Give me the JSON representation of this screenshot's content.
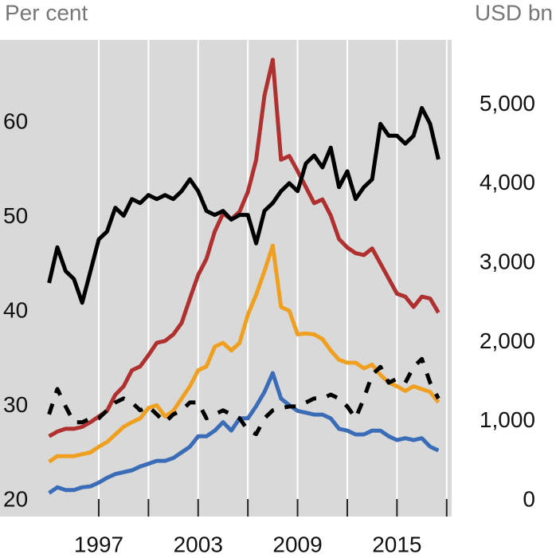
{
  "chart_data": {
    "type": "line",
    "y_label": "Per cent",
    "y2_label": "USD bn",
    "x": [
      1994.0,
      1994.5,
      1995.0,
      1995.5,
      1996.0,
      1996.5,
      1997.0,
      1997.5,
      1998.0,
      1998.5,
      1999.0,
      1999.5,
      2000.0,
      2000.5,
      2001.0,
      2001.5,
      2002.0,
      2002.5,
      2003.0,
      2003.5,
      2004.0,
      2004.5,
      2005.0,
      2005.5,
      2006.0,
      2006.5,
      2007.0,
      2007.5,
      2008.0,
      2008.5,
      2009.0,
      2009.5,
      2010.0,
      2010.5,
      2011.0,
      2011.5,
      2012.0,
      2012.5,
      2013.0,
      2013.5,
      2014.0,
      2014.5,
      2015.0,
      2015.5,
      2016.0,
      2016.5,
      2017.0,
      2017.5
    ],
    "series": [
      {
        "color": "#b03030",
        "values": [
          26.8,
          27.3,
          27.6,
          27.6,
          27.8,
          28.3,
          28.9,
          29.5,
          31.2,
          32.1,
          33.8,
          34.2,
          35.4,
          36.7,
          36.9,
          37.6,
          38.8,
          41.4,
          43.9,
          45.6,
          48.5,
          50.4,
          49.8,
          50.6,
          52.7,
          56.1,
          62.9,
          66.7,
          56.1,
          56.5,
          54.9,
          53.2,
          51.5,
          51.9,
          50.2,
          47.7,
          46.8,
          46.2,
          46.0,
          46.7,
          45.1,
          43.5,
          41.9,
          41.6,
          40.5,
          41.6,
          41.4,
          39.9
        ]
      },
      {
        "color": "#f0a020",
        "values": [
          24.1,
          24.7,
          24.7,
          24.7,
          24.9,
          25.1,
          25.7,
          26.2,
          27.0,
          27.8,
          28.3,
          28.7,
          29.8,
          30.1,
          28.9,
          29.5,
          30.8,
          32.1,
          33.8,
          34.2,
          36.3,
          36.7,
          35.9,
          36.7,
          39.7,
          41.8,
          44.3,
          47.0,
          40.5,
          40.1,
          37.6,
          37.7,
          37.6,
          37.1,
          35.9,
          34.9,
          34.6,
          34.6,
          34.0,
          34.4,
          33.3,
          32.5,
          32.1,
          31.6,
          32.1,
          31.8,
          31.5,
          30.4
        ]
      },
      {
        "color": "#3a6cb8",
        "values": [
          20.8,
          21.4,
          21.1,
          21.1,
          21.4,
          21.5,
          21.9,
          22.4,
          22.8,
          23.0,
          23.2,
          23.6,
          23.9,
          24.2,
          24.2,
          24.5,
          25.1,
          25.7,
          26.8,
          26.8,
          27.4,
          28.3,
          27.4,
          28.7,
          28.7,
          30.0,
          31.5,
          33.5,
          30.8,
          30.1,
          29.5,
          29.3,
          29.1,
          29.1,
          28.7,
          27.6,
          27.4,
          27.0,
          27.0,
          27.4,
          27.4,
          26.8,
          26.4,
          26.6,
          26.4,
          26.6,
          25.7,
          25.3
        ]
      },
      {
        "color": "#000000",
        "axis": "y2",
        "values": [
          2750,
          3200,
          2900,
          2800,
          2500,
          2900,
          3300,
          3400,
          3700,
          3600,
          3810,
          3760,
          3860,
          3810,
          3860,
          3810,
          3910,
          4060,
          3910,
          3660,
          3610,
          3660,
          3550,
          3610,
          3610,
          3250,
          3660,
          3760,
          3910,
          4010,
          3910,
          4260,
          4360,
          4210,
          4460,
          3960,
          4160,
          3810,
          3960,
          4060,
          4760,
          4610,
          4610,
          4510,
          4610,
          4960,
          4760,
          4310
        ]
      },
      {
        "color": "#000000",
        "axis": "y2",
        "dashed": true,
        "values": [
          1090,
          1410,
          1190,
          990,
          990,
          1040,
          1040,
          1140,
          1240,
          1290,
          1240,
          1140,
          1190,
          1090,
          990,
          1090,
          1140,
          1240,
          1240,
          1040,
          1090,
          1140,
          1090,
          1040,
          890,
          840,
          1040,
          1140,
          1170,
          1190,
          1190,
          1240,
          1290,
          1290,
          1340,
          1290,
          1190,
          1040,
          1290,
          1590,
          1690,
          1490,
          1540,
          1490,
          1690,
          1790,
          1490,
          1290
        ]
      }
    ],
    "xlim": [
      1991.04,
      2018.3
    ],
    "xticks": [
      1997,
      2003,
      2009,
      2015
    ],
    "xminor_ticks": [
      2000,
      2006,
      2012,
      2018
    ],
    "ylim": [
      18.3,
      68.8
    ],
    "yticks": [
      20,
      30,
      40,
      50,
      60
    ],
    "y2lim": [
      -201,
      5821
    ],
    "y2ticks": [
      0,
      {
        "value": 1000,
        "label": "1,000"
      },
      {
        "value": 2000,
        "label": "2,000"
      },
      {
        "value": 3000,
        "label": "3,000"
      },
      {
        "value": 4000,
        "label": "4,000"
      },
      {
        "value": 5000,
        "label": "5,000"
      }
    ],
    "grid": true
  }
}
